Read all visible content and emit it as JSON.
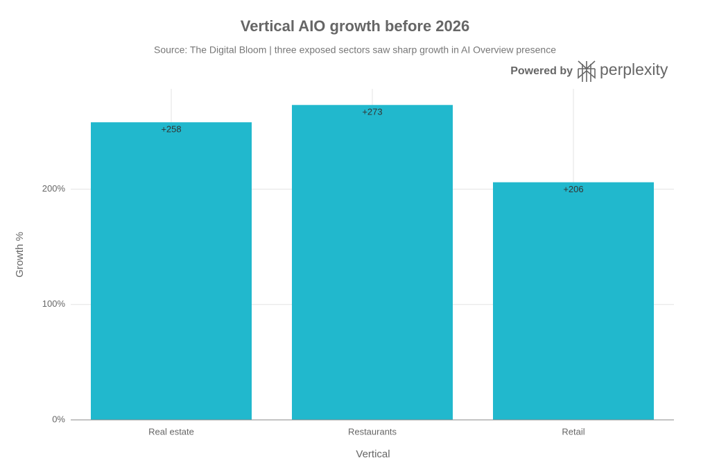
{
  "chart_data": {
    "type": "bar",
    "title": "Vertical AIO growth before 2026",
    "subtitle": "Source: The Digital Bloom | three exposed sectors saw sharp growth in AI Overview presence",
    "x_label": "Vertical",
    "y_label": "Growth %",
    "categories": [
      "Real estate",
      "Restaurants",
      "Retail"
    ],
    "values": [
      258,
      273,
      206
    ],
    "value_labels": [
      "+258",
      "+273",
      "+206"
    ],
    "color": "#21b8cd",
    "ylim": [
      0,
      287
    ],
    "yticks": [
      {
        "value": 0,
        "label": "0%"
      },
      {
        "value": 100,
        "label": "100%"
      },
      {
        "value": 200,
        "label": "200%"
      }
    ],
    "grid": true
  },
  "branding": {
    "prefix": "Powered by",
    "name": "perplexity"
  }
}
